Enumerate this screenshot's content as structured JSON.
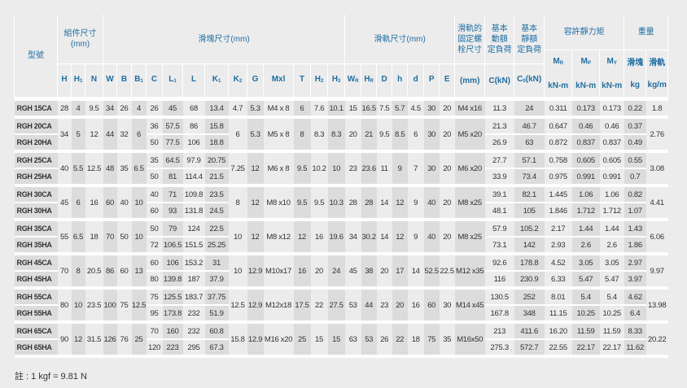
{
  "header": {
    "model": "型號",
    "assembly": "組件尺寸\n(mm)",
    "block": "滑塊尺寸(mm)",
    "rail": "滑軌尺寸(mm)",
    "bolt": "滑軌的\n固定螺\n栓尺寸",
    "dynamic": "基本\n動額\n定負荷",
    "static": "基本\n靜額\n定負荷",
    "moment": "容許靜力矩",
    "weight": "重量",
    "block_weight": "滑塊",
    "rail_weight": "滑軌",
    "kg": "kg",
    "kgm": "kg/m",
    "knm": "kN-m",
    "bolt_unit": "(mm)",
    "cols": [
      {
        "m": "H",
        "s": ""
      },
      {
        "m": "H",
        "s": "1"
      },
      {
        "m": "N",
        "s": ""
      },
      {
        "m": "W",
        "s": ""
      },
      {
        "m": "B",
        "s": ""
      },
      {
        "m": "B",
        "s": "1"
      },
      {
        "m": "C",
        "s": ""
      },
      {
        "m": "L",
        "s": "1"
      },
      {
        "m": "L",
        "s": ""
      },
      {
        "m": "K",
        "s": "1"
      },
      {
        "m": "K",
        "s": "2"
      },
      {
        "m": "G",
        "s": ""
      },
      {
        "m": "Mxl",
        "s": ""
      },
      {
        "m": "T",
        "s": ""
      },
      {
        "m": "H",
        "s": "2"
      },
      {
        "m": "H",
        "s": "3"
      },
      {
        "m": "W",
        "s": "R"
      },
      {
        "m": "H",
        "s": "R"
      },
      {
        "m": "D",
        "s": ""
      },
      {
        "m": "h",
        "s": ""
      },
      {
        "m": "d",
        "s": ""
      },
      {
        "m": "P",
        "s": ""
      },
      {
        "m": "E",
        "s": ""
      }
    ],
    "c_col": {
      "m": "C(kN)",
      "s": ""
    },
    "c0_col": {
      "m": "C",
      "s": "0",
      "u": "(kN)"
    },
    "moments": [
      {
        "m": "M",
        "s": "R"
      },
      {
        "m": "M",
        "s": "P"
      },
      {
        "m": "M",
        "s": "Y"
      }
    ]
  },
  "groups": [
    {
      "models": [
        "RGH 15CA"
      ],
      "H": "28",
      "H1": "4",
      "N": "9.5",
      "W": "34",
      "B": "26",
      "B1": "4",
      "K2": "4.7",
      "G": "5.3",
      "Mxl": "M4 x 8",
      "T": "6",
      "H2": "7.6",
      "H3": "10.1",
      "WR": "15",
      "HR": "16.5",
      "D": "7.5",
      "h": "5.7",
      "d": "4.5",
      "P": "30",
      "E": "20",
      "bolt": "M4 x16",
      "rail": "1.8",
      "variants": [
        {
          "C": "26",
          "L1": "45",
          "L": "68",
          "K1": "13.4",
          "dyn": "11.3",
          "st": "24",
          "MR": "0.311",
          "MP": "0.173",
          "MY": "0.173",
          "kg": "0.22"
        }
      ]
    },
    {
      "models": [
        "RGH 20CA",
        "RGH 20HA"
      ],
      "H": "34",
      "H1": "5",
      "N": "12",
      "W": "44",
      "B": "32",
      "B1": "6",
      "K2": "6",
      "G": "5.3",
      "Mxl": "M5 x 8",
      "T": "8",
      "H2": "8.3",
      "H3": "8.3",
      "WR": "20",
      "HR": "21",
      "D": "9.5",
      "h": "8.5",
      "d": "6",
      "P": "30",
      "E": "20",
      "bolt": "M5 x20",
      "rail": "2.76",
      "variants": [
        {
          "C": "36",
          "L1": "57.5",
          "L": "86",
          "K1": "15.8",
          "dyn": "21.3",
          "st": "46.7",
          "MR": "0.647",
          "MP": "0.46",
          "MY": "0.46",
          "kg": "0.37"
        },
        {
          "C": "50",
          "L1": "77.5",
          "L": "106",
          "K1": "18.8",
          "dyn": "26.9",
          "st": "63",
          "MR": "0.872",
          "MP": "0.837",
          "MY": "0.837",
          "kg": "0.49"
        }
      ]
    },
    {
      "models": [
        "RGH 25CA",
        "RGH 25HA"
      ],
      "H": "40",
      "H1": "5.5",
      "N": "12.5",
      "W": "48",
      "B": "35",
      "B1": "6.5",
      "K2": "7.25",
      "G": "12",
      "Mxl": "M6 x 8",
      "T": "9.5",
      "H2": "10.2",
      "H3": "10",
      "WR": "23",
      "HR": "23.6",
      "D": "11",
      "h": "9",
      "d": "7",
      "P": "30",
      "E": "20",
      "bolt": "M6 x20",
      "rail": "3.08",
      "variants": [
        {
          "C": "35",
          "L1": "64.5",
          "L": "97.9",
          "K1": "20.75",
          "dyn": "27.7",
          "st": "57.1",
          "MR": "0.758",
          "MP": "0.605",
          "MY": "0.605",
          "kg": "0.55"
        },
        {
          "C": "50",
          "L1": "81",
          "L": "114.4",
          "K1": "21.5",
          "dyn": "33.9",
          "st": "73.4",
          "MR": "0.975",
          "MP": "0.991",
          "MY": "0.991",
          "kg": "0.7"
        }
      ]
    },
    {
      "models": [
        "RGH 30CA",
        "RGH 30HA"
      ],
      "H": "45",
      "H1": "6",
      "N": "16",
      "W": "60",
      "B": "40",
      "B1": "10",
      "K2": "8",
      "G": "12",
      "Mxl": "M8 x10",
      "T": "9.5",
      "H2": "9.5",
      "H3": "10.3",
      "WR": "28",
      "HR": "28",
      "D": "14",
      "h": "12",
      "d": "9",
      "P": "40",
      "E": "20",
      "bolt": "M8 x25",
      "rail": "4.41",
      "variants": [
        {
          "C": "40",
          "L1": "71",
          "L": "109.8",
          "K1": "23.5",
          "dyn": "39.1",
          "st": "82.1",
          "MR": "1.445",
          "MP": "1.06",
          "MY": "1.06",
          "kg": "0.82"
        },
        {
          "C": "60",
          "L1": "93",
          "L": "131.8",
          "K1": "24.5",
          "dyn": "48.1",
          "st": "105",
          "MR": "1.846",
          "MP": "1.712",
          "MY": "1.712",
          "kg": "1.07"
        }
      ]
    },
    {
      "models": [
        "RGH 35CA",
        "RGH 35HA"
      ],
      "H": "55",
      "H1": "6.5",
      "N": "18",
      "W": "70",
      "B": "50",
      "B1": "10",
      "K2": "10",
      "G": "12",
      "Mxl": "M8 x12",
      "T": "12",
      "H2": "16",
      "H3": "19.6",
      "WR": "34",
      "HR": "30.2",
      "D": "14",
      "h": "12",
      "d": "9",
      "P": "40",
      "E": "20",
      "bolt": "M8 x25",
      "rail": "6.06",
      "variants": [
        {
          "C": "50",
          "L1": "79",
          "L": "124",
          "K1": "22.5",
          "dyn": "57.9",
          "st": "105.2",
          "MR": "2.17",
          "MP": "1.44",
          "MY": "1.44",
          "kg": "1.43"
        },
        {
          "C": "72",
          "L1": "106.5",
          "L": "151.5",
          "K1": "25.25",
          "dyn": "73.1",
          "st": "142",
          "MR": "2.93",
          "MP": "2.6",
          "MY": "2.6",
          "kg": "1.86"
        }
      ]
    },
    {
      "models": [
        "RGH 45CA",
        "RGH 45HA"
      ],
      "H": "70",
      "H1": "8",
      "N": "20.5",
      "W": "86",
      "B": "60",
      "B1": "13",
      "K2": "10",
      "G": "12.9",
      "Mxl": "M10x17",
      "T": "16",
      "H2": "20",
      "H3": "24",
      "WR": "45",
      "HR": "38",
      "D": "20",
      "h": "17",
      "d": "14",
      "P": "52.5",
      "E": "22.5",
      "bolt": "M12 x35",
      "rail": "9.97",
      "variants": [
        {
          "C": "60",
          "L1": "106",
          "L": "153.2",
          "K1": "31",
          "dyn": "92.6",
          "st": "178.8",
          "MR": "4.52",
          "MP": "3.05",
          "MY": "3.05",
          "kg": "2.97"
        },
        {
          "C": "80",
          "L1": "139.8",
          "L": "187",
          "K1": "37.9",
          "dyn": "116",
          "st": "230.9",
          "MR": "6.33",
          "MP": "5.47",
          "MY": "5.47",
          "kg": "3.97"
        }
      ]
    },
    {
      "models": [
        "RGH 55CA",
        "RGH 55HA"
      ],
      "H": "80",
      "H1": "10",
      "N": "23.5",
      "W": "100",
      "B": "75",
      "B1": "12.5",
      "K2": "12.5",
      "G": "12.9",
      "Mxl": "M12x18",
      "T": "17.5",
      "H2": "22",
      "H3": "27.5",
      "WR": "53",
      "HR": "44",
      "D": "23",
      "h": "20",
      "d": "16",
      "P": "60",
      "E": "30",
      "bolt": "M14 x45",
      "rail": "13.98",
      "variants": [
        {
          "C": "75",
          "L1": "125.5",
          "L": "183.7",
          "K1": "37.75",
          "dyn": "130.5",
          "st": "252",
          "MR": "8.01",
          "MP": "5.4",
          "MY": "5.4",
          "kg": "4.62"
        },
        {
          "C": "95",
          "L1": "173.8",
          "L": "232",
          "K1": "51.9",
          "dyn": "167.8",
          "st": "348",
          "MR": "11.15",
          "MP": "10.25",
          "MY": "10.25",
          "kg": "6.4"
        }
      ]
    },
    {
      "models": [
        "RGH 65CA",
        "RGH 65HA"
      ],
      "H": "90",
      "H1": "12",
      "N": "31.5",
      "W": "126",
      "B": "76",
      "B1": "25",
      "K2": "15.8",
      "G": "12.9",
      "Mxl": "M16 x20",
      "T": "25",
      "H2": "15",
      "H3": "15",
      "WR": "63",
      "HR": "53",
      "D": "26",
      "h": "22",
      "d": "18",
      "P": "75",
      "E": "35",
      "bolt": "M16x50",
      "rail": "20.22",
      "variants": [
        {
          "C": "70",
          "L1": "160",
          "L": "232",
          "K1": "60.8",
          "dyn": "213",
          "st": "411.6",
          "MR": "16.20",
          "MP": "11.59",
          "MY": "11.59",
          "kg": "8.33"
        },
        {
          "C": "120",
          "L1": "223",
          "L": "295",
          "K1": "67.3",
          "dyn": "275.3",
          "st": "572.7",
          "MR": "22.55",
          "MP": "22.17",
          "MY": "22.17",
          "kg": "11.62"
        }
      ]
    }
  ],
  "note": "註 : 1 kgf = 9.81 N",
  "colors": {
    "header_text": "#1f6fa5",
    "shade_dark": "#dcdcdc",
    "shade_light": "#ececec",
    "separator": "#ffffff"
  }
}
